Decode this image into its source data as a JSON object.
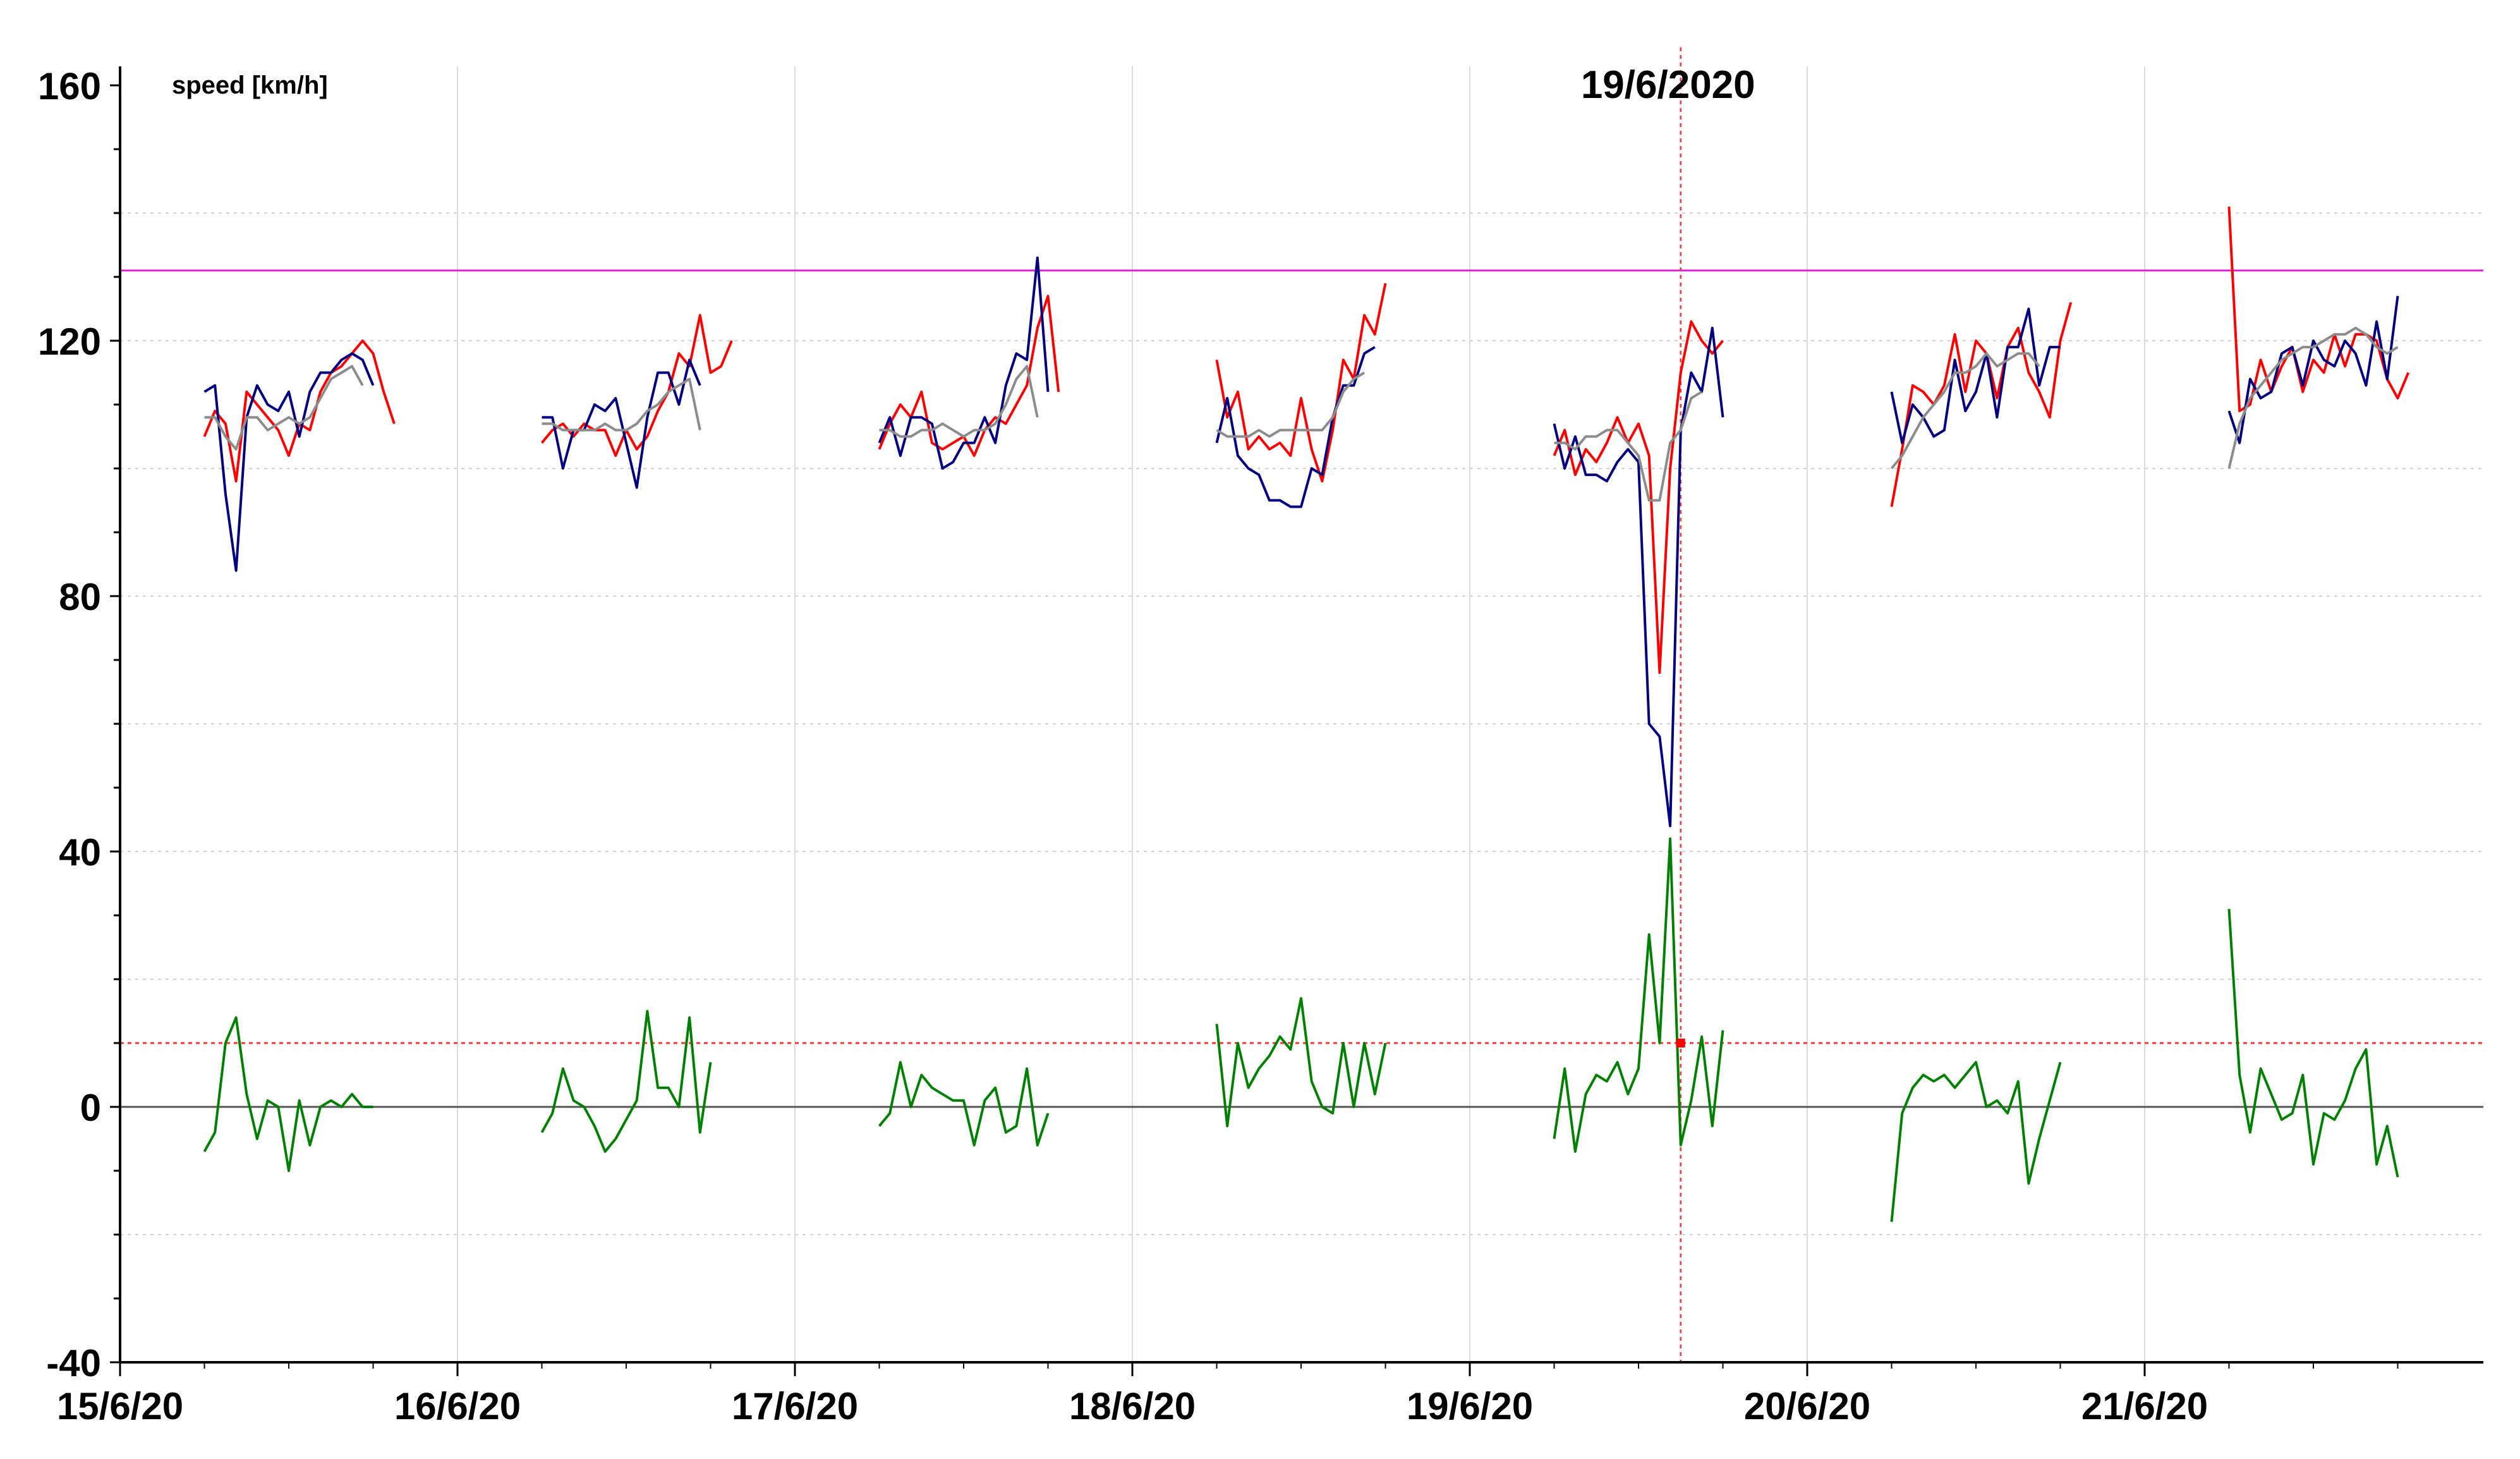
{
  "chart_data": {
    "type": "line",
    "ylabel": "speed [km/h]",
    "ylim": [
      -40,
      160
    ],
    "y_ticks": [
      -40,
      0,
      40,
      80,
      120,
      160
    ],
    "x_range": [
      "2020-06-15 00:00",
      "2020-06-22 00:00"
    ],
    "x_ticks": [
      "15/6/20",
      "16/6/20",
      "17/6/20",
      "18/6/20",
      "19/6/20",
      "20/6/20",
      "21/6/20"
    ],
    "grid": true,
    "reference_lines": [
      {
        "value": 131,
        "color": "#dd22dd"
      },
      {
        "value": 10,
        "color": "#ff3333"
      },
      {
        "value": 0,
        "color": "#555555"
      }
    ],
    "marker": {
      "label": "19/6/2020",
      "x": "2020-06-19 15:00",
      "y": 10
    },
    "colors": {
      "red": "#ff0000",
      "blue": "#000080",
      "gray": "#8c8c8c",
      "green": "#008000",
      "magenta": "#dd22dd"
    },
    "series": [
      {
        "color": "red",
        "x": [
          [
            "2020-06-15 06:00",
            "2020-06-15 06:45",
            "2020-06-15 07:30",
            "2020-06-15 08:15",
            "2020-06-15 09:00",
            "2020-06-15 09:45",
            "2020-06-15 10:30",
            "2020-06-15 11:15",
            "2020-06-15 12:00",
            "2020-06-15 12:45",
            "2020-06-15 13:30",
            "2020-06-15 14:15",
            "2020-06-15 15:00",
            "2020-06-15 15:45",
            "2020-06-15 16:30",
            "2020-06-15 17:15",
            "2020-06-15 18:00",
            "2020-06-15 18:45",
            "2020-06-15 19:30",
            "2020-06-15 20:15",
            "2020-06-15 21:00"
          ],
          [
            "2020-06-16 06:00",
            "2020-06-16 06:45",
            "2020-06-16 07:30",
            "2020-06-16 08:15",
            "2020-06-16 09:00",
            "2020-06-16 09:45",
            "2020-06-16 10:30",
            "2020-06-16 11:15",
            "2020-06-16 12:00",
            "2020-06-16 12:45",
            "2020-06-16 13:30",
            "2020-06-16 14:15",
            "2020-06-16 15:00",
            "2020-06-16 15:45",
            "2020-06-16 16:30",
            "2020-06-16 17:15",
            "2020-06-16 18:00",
            "2020-06-16 18:45",
            "2020-06-16 19:30",
            "2020-06-16 20:15",
            "2020-06-16 21:00"
          ],
          [
            "2020-06-17 06:00",
            "2020-06-17 06:45",
            "2020-06-17 07:30",
            "2020-06-17 08:15",
            "2020-06-17 09:00",
            "2020-06-17 09:45",
            "2020-06-17 10:30",
            "2020-06-17 11:15",
            "2020-06-17 12:00",
            "2020-06-17 12:45",
            "2020-06-17 13:30",
            "2020-06-17 14:15",
            "2020-06-17 15:00",
            "2020-06-17 15:45",
            "2020-06-17 16:30",
            "2020-06-17 17:15",
            "2020-06-17 18:00",
            "2020-06-17 18:45",
            "2020-06-17 19:30",
            "2020-06-17 20:15",
            "2020-06-17 21:00"
          ],
          [
            "2020-06-18 06:00",
            "2020-06-18 06:45",
            "2020-06-18 07:30",
            "2020-06-18 08:15",
            "2020-06-18 09:00",
            "2020-06-18 09:45",
            "2020-06-18 10:30",
            "2020-06-18 11:15",
            "2020-06-18 12:00",
            "2020-06-18 12:45",
            "2020-06-18 13:30",
            "2020-06-18 14:15",
            "2020-06-18 15:00",
            "2020-06-18 15:45",
            "2020-06-18 16:30",
            "2020-06-18 17:15",
            "2020-06-18 18:00",
            "2020-06-18 18:45",
            "2020-06-18 19:30",
            "2020-06-18 20:15",
            "2020-06-18 21:00"
          ],
          [
            "2020-06-19 06:00",
            "2020-06-19 06:45",
            "2020-06-19 07:30",
            "2020-06-19 08:15",
            "2020-06-19 09:00",
            "2020-06-19 09:45",
            "2020-06-19 10:30",
            "2020-06-19 11:15",
            "2020-06-19 12:00",
            "2020-06-19 12:45",
            "2020-06-19 13:30",
            "2020-06-19 14:15",
            "2020-06-19 15:00",
            "2020-06-19 15:45",
            "2020-06-19 16:30",
            "2020-06-19 17:15",
            "2020-06-19 18:00",
            "2020-06-19 18:45",
            "2020-06-19 19:30",
            "2020-06-19 20:15",
            "2020-06-19 21:00"
          ],
          [
            "2020-06-20 06:00",
            "2020-06-20 06:45",
            "2020-06-20 07:30",
            "2020-06-20 08:15",
            "2020-06-20 09:00",
            "2020-06-20 09:45",
            "2020-06-20 10:30",
            "2020-06-20 11:15",
            "2020-06-20 12:00",
            "2020-06-20 12:45",
            "2020-06-20 13:30",
            "2020-06-20 14:15",
            "2020-06-20 15:00",
            "2020-06-20 15:45",
            "2020-06-20 16:30",
            "2020-06-20 17:15",
            "2020-06-20 18:00",
            "2020-06-20 18:45",
            "2020-06-20 19:30",
            "2020-06-20 20:15",
            "2020-06-20 21:00"
          ],
          [
            "2020-06-21 06:00",
            "2020-06-21 06:45",
            "2020-06-21 07:30",
            "2020-06-21 08:15",
            "2020-06-21 09:00",
            "2020-06-21 09:45",
            "2020-06-21 10:30",
            "2020-06-21 11:15",
            "2020-06-21 12:00",
            "2020-06-21 12:45",
            "2020-06-21 13:30",
            "2020-06-21 14:15",
            "2020-06-21 15:00",
            "2020-06-21 15:45",
            "2020-06-21 16:30",
            "2020-06-21 17:15",
            "2020-06-21 18:00",
            "2020-06-21 18:45",
            "2020-06-21 19:30",
            "2020-06-21 20:15",
            "2020-06-21 21:00"
          ]
        ],
        "y": [
          [
            105,
            109,
            107,
            98,
            112,
            110,
            108,
            106,
            102,
            107,
            106,
            112,
            115,
            116,
            118,
            120,
            118,
            112,
            107
          ],
          [
            104,
            106,
            107,
            105,
            107,
            106,
            106,
            102,
            106,
            103,
            105,
            109,
            112,
            118,
            116,
            124,
            115,
            116,
            120
          ],
          [
            103,
            107,
            110,
            108,
            112,
            104,
            103,
            104,
            105,
            102,
            106,
            108,
            107,
            110,
            113,
            122,
            127,
            112
          ],
          [
            117,
            108,
            112,
            103,
            105,
            103,
            104,
            102,
            111,
            103,
            98,
            106,
            117,
            114,
            124,
            121,
            129
          ],
          [
            102,
            106,
            99,
            103,
            101,
            104,
            108,
            104,
            107,
            102,
            68,
            100,
            115,
            123,
            120,
            118,
            120
          ],
          [
            94,
            103,
            113,
            112,
            110,
            113,
            121,
            112,
            120,
            118,
            111,
            119,
            122,
            115,
            112,
            108,
            120,
            126
          ],
          [
            141,
            109,
            110,
            117,
            112,
            116,
            119,
            112,
            117,
            115,
            121,
            116,
            121,
            121,
            120,
            114,
            111,
            115
          ]
        ]
      },
      {
        "color": "blue",
        "y": [
          [
            112,
            113,
            96,
            84,
            108,
            113,
            110,
            109,
            112,
            105,
            112,
            115,
            115,
            117,
            118,
            117,
            113
          ],
          [
            108,
            108,
            100,
            106,
            106,
            110,
            109,
            111,
            104,
            97,
            108,
            115,
            115,
            110,
            117,
            113
          ],
          [
            104,
            108,
            102,
            108,
            108,
            107,
            100,
            101,
            104,
            104,
            108,
            104,
            113,
            118,
            117,
            133,
            112
          ],
          [
            104,
            111,
            102,
            100,
            99,
            95,
            95,
            94,
            94,
            100,
            99,
            108,
            113,
            113,
            118,
            119
          ],
          [
            107,
            100,
            105,
            99,
            99,
            98,
            101,
            103,
            101,
            60,
            58,
            44,
            106,
            115,
            112,
            122,
            108
          ],
          [
            112,
            104,
            110,
            108,
            105,
            106,
            117,
            109,
            112,
            118,
            108,
            119,
            119,
            125,
            113,
            119,
            119
          ],
          [
            109,
            104,
            114,
            111,
            112,
            118,
            119,
            113,
            120,
            117,
            116,
            120,
            118,
            113,
            123,
            114,
            127
          ]
        ]
      },
      {
        "color": "gray",
        "y": [
          [
            108,
            108,
            105,
            103,
            108,
            108,
            106,
            107,
            108,
            107,
            108,
            111,
            114,
            115,
            116,
            113
          ],
          [
            107,
            107,
            106,
            106,
            106,
            106,
            107,
            106,
            106,
            107,
            109,
            110,
            112,
            113,
            114,
            106
          ],
          [
            106,
            106,
            105,
            105,
            106,
            106,
            107,
            106,
            105,
            106,
            106,
            107,
            110,
            114,
            116,
            108
          ],
          [
            106,
            105,
            105,
            105,
            106,
            105,
            106,
            106,
            106,
            106,
            106,
            108,
            112,
            114,
            115
          ],
          [
            104,
            104,
            103,
            105,
            105,
            106,
            106,
            104,
            102,
            95,
            95,
            104,
            106,
            111,
            112
          ],
          [
            100,
            102,
            105,
            108,
            110,
            112,
            115,
            115,
            116,
            118,
            116,
            117,
            118,
            118,
            116
          ],
          [
            100,
            107,
            111,
            113,
            115,
            117,
            118,
            119,
            119,
            120,
            121,
            121,
            122,
            121,
            119,
            118,
            119
          ]
        ]
      },
      {
        "color": "green",
        "y": [
          [
            -7,
            -4,
            10,
            14,
            2,
            -5,
            1,
            0,
            -10,
            1,
            -6,
            0,
            1,
            0,
            2,
            0,
            0
          ],
          [
            -4,
            -1,
            6,
            1,
            0,
            -3,
            -7,
            -5,
            -2,
            1,
            15,
            3,
            3,
            0,
            14,
            -4,
            7
          ],
          [
            -3,
            -1,
            7,
            0,
            5,
            3,
            2,
            1,
            1,
            -6,
            1,
            3,
            -4,
            -3,
            6,
            -6,
            -1
          ],
          [
            13,
            -3,
            10,
            3,
            6,
            8,
            11,
            9,
            17,
            4,
            0,
            -1,
            10,
            0,
            10,
            2,
            10
          ],
          [
            -5,
            6,
            -7,
            2,
            5,
            4,
            7,
            2,
            6,
            27,
            10,
            42,
            -6,
            1,
            11,
            -3,
            12
          ],
          [
            -18,
            -1,
            3,
            5,
            4,
            5,
            3,
            5,
            7,
            0,
            1,
            -1,
            4,
            -12,
            -5,
            1,
            7
          ],
          [
            31,
            5,
            -4,
            6,
            2,
            -2,
            -1,
            5,
            -9,
            -1,
            -2,
            1,
            6,
            9,
            -9,
            -3,
            -11
          ]
        ]
      }
    ]
  }
}
